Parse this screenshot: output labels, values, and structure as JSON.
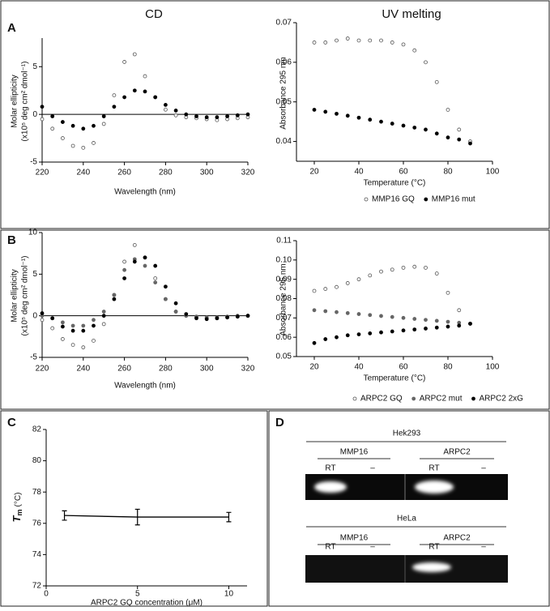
{
  "chart_data": [
    {
      "type": "scatter",
      "panel": "A",
      "title": "CD",
      "xlabel": "Wavelength (nm)",
      "ylabel": [
        "Molar ellipticity",
        "(x10⁵ deg cm² dmol⁻¹)"
      ],
      "xlim": [
        220,
        320
      ],
      "xticks": [
        220,
        240,
        260,
        280,
        300,
        320
      ],
      "ylim": [
        -5,
        8
      ],
      "yticks": [
        -5,
        0,
        5
      ],
      "zero_line": true,
      "x": [
        220,
        225,
        230,
        235,
        240,
        245,
        250,
        255,
        260,
        265,
        270,
        275,
        280,
        285,
        290,
        295,
        300,
        305,
        310,
        315,
        320
      ],
      "series": [
        {
          "color": "#555555",
          "marker": "open",
          "values": [
            -0.5,
            -1.5,
            -2.5,
            -3.3,
            -3.5,
            -3,
            -1,
            2,
            5.5,
            6.3,
            4,
            1.8,
            0.5,
            -0.1,
            -0.3,
            -0.4,
            -0.5,
            -0.6,
            -0.5,
            -0.4,
            -0.3
          ]
        },
        {
          "color": "#000000",
          "marker": "filled",
          "values": [
            0.8,
            -0.2,
            -0.8,
            -1.2,
            -1.5,
            -1.2,
            -0.2,
            0.8,
            1.8,
            2.5,
            2.4,
            1.8,
            1,
            0.4,
            0,
            -0.2,
            -0.3,
            -0.3,
            -0.2,
            -0.1,
            0
          ]
        }
      ]
    },
    {
      "type": "scatter",
      "title": "UV melting",
      "xlabel": "Temperature (°C)",
      "ylabel": [
        "Absorbance 295 nm"
      ],
      "xlim": [
        12,
        100
      ],
      "xticks": [
        20,
        40,
        60,
        80,
        100
      ],
      "ylim": [
        0.035,
        0.07
      ],
      "yticks": [
        0.04,
        0.05,
        0.06,
        0.07
      ],
      "x": [
        20,
        25,
        30,
        35,
        40,
        45,
        50,
        55,
        60,
        65,
        70,
        75,
        80,
        85,
        90
      ],
      "series": [
        {
          "name": "MMP16 GQ",
          "color": "#555555",
          "marker": "open",
          "values": [
            0.065,
            0.065,
            0.0655,
            0.066,
            0.0655,
            0.0655,
            0.0655,
            0.065,
            0.0645,
            0.063,
            0.06,
            0.055,
            0.048,
            0.043,
            0.04
          ]
        },
        {
          "name": "MMP16 mut",
          "color": "#000000",
          "marker": "filled",
          "values": [
            0.048,
            0.0475,
            0.047,
            0.0465,
            0.046,
            0.0455,
            0.045,
            0.0445,
            0.044,
            0.0435,
            0.043,
            0.042,
            0.041,
            0.0405,
            0.0395
          ]
        }
      ]
    },
    {
      "type": "scatter",
      "panel": "B",
      "xlabel": "Wavelength (nm)",
      "ylabel": [
        "Molar ellipticity",
        "(x10⁵ deg cm² dmol⁻¹)"
      ],
      "xlim": [
        220,
        320
      ],
      "xticks": [
        220,
        240,
        260,
        280,
        300,
        320
      ],
      "ylim": [
        -5,
        10
      ],
      "yticks": [
        -5,
        0,
        5,
        10
      ],
      "zero_line": true,
      "x": [
        220,
        225,
        230,
        235,
        240,
        245,
        250,
        255,
        260,
        265,
        270,
        275,
        280,
        285,
        290,
        295,
        300,
        305,
        310,
        315,
        320
      ],
      "series": [
        {
          "color": "#555555",
          "marker": "open",
          "values": [
            -0.5,
            -1.5,
            -2.8,
            -3.5,
            -3.8,
            -3,
            -1,
            2.5,
            6.5,
            8.5,
            7,
            4.5,
            2,
            0.5,
            0,
            -0.2,
            -0.3,
            -0.3,
            -0.2,
            -0.1,
            0
          ]
        },
        {
          "color": "#666666",
          "marker": "filled",
          "values": [
            0,
            -0.3,
            -0.8,
            -1.2,
            -1.2,
            -0.5,
            0.5,
            2.5,
            5.5,
            6.8,
            6,
            4,
            2,
            0.5,
            0,
            -0.1,
            -0.2,
            -0.2,
            -0.1,
            0,
            0
          ]
        },
        {
          "color": "#000000",
          "marker": "filled",
          "values": [
            0.3,
            -0.3,
            -1.3,
            -1.8,
            -1.8,
            -1.2,
            0,
            2,
            4.5,
            6.5,
            7,
            6,
            3.5,
            1.5,
            0.2,
            -0.3,
            -0.4,
            -0.3,
            -0.2,
            -0.1,
            0
          ]
        }
      ]
    },
    {
      "type": "scatter",
      "xlabel": "Temperature (°C)",
      "ylabel": [
        "Absorbance 295 nm"
      ],
      "xlim": [
        12,
        100
      ],
      "xticks": [
        20,
        40,
        60,
        80,
        100
      ],
      "ylim": [
        0.05,
        0.11
      ],
      "yticks": [
        0.05,
        0.06,
        0.07,
        0.08,
        0.09,
        {
          "value": 0.1,
          "label": "0.10"
        },
        0.11
      ],
      "x": [
        20,
        25,
        30,
        35,
        40,
        45,
        50,
        55,
        60,
        65,
        70,
        75,
        80,
        85,
        90
      ],
      "series": [
        {
          "name": "ARPC2 GQ",
          "color": "#555555",
          "marker": "open",
          "values": [
            0.084,
            0.085,
            0.086,
            0.088,
            0.09,
            0.092,
            0.094,
            0.095,
            0.096,
            0.0965,
            0.096,
            0.093,
            0.083,
            0.074,
            0.067
          ]
        },
        {
          "name": "ARPC2 mut",
          "color": "#666666",
          "marker": "filled",
          "values": [
            0.074,
            0.0735,
            0.073,
            0.0725,
            0.072,
            0.0715,
            0.071,
            0.0705,
            0.07,
            0.0695,
            0.069,
            0.0685,
            0.068,
            0.0675,
            0.067
          ]
        },
        {
          "name": "ARPC2 2xG",
          "color": "#000000",
          "marker": "filled",
          "values": [
            0.057,
            0.059,
            0.06,
            0.061,
            0.0615,
            0.062,
            0.0625,
            0.063,
            0.0635,
            0.064,
            0.0645,
            0.065,
            0.0655,
            0.066,
            0.067
          ]
        }
      ]
    },
    {
      "type": "line",
      "panel": "C",
      "xlabel": "ARPC2 GQ concentration (μM)",
      "ylabel": [
        "T",
        "m",
        "(°C)"
      ],
      "xlim": [
        0,
        11
      ],
      "xticks": [
        0,
        5,
        10
      ],
      "ylim": [
        72,
        82
      ],
      "yticks": [
        72,
        74,
        76,
        78,
        80,
        82
      ],
      "x": [
        1,
        5,
        10
      ],
      "values": [
        76.5,
        76.4,
        76.4
      ],
      "errors": [
        0.3,
        0.5,
        0.3
      ],
      "color": "#000000"
    }
  ],
  "gel": {
    "panel": "D",
    "blots": [
      {
        "cell": "Hek293",
        "groups": [
          {
            "name": "MMP16",
            "lanes": [
              "RT",
              "–"
            ]
          },
          {
            "name": "ARPC2",
            "lanes": [
              "RT",
              "–"
            ]
          }
        ]
      },
      {
        "cell": "HeLa",
        "groups": [
          {
            "name": "MMP16",
            "lanes": [
              "RT",
              "–"
            ]
          },
          {
            "name": "ARPC2",
            "lanes": [
              "RT",
              "–"
            ]
          }
        ]
      }
    ]
  }
}
